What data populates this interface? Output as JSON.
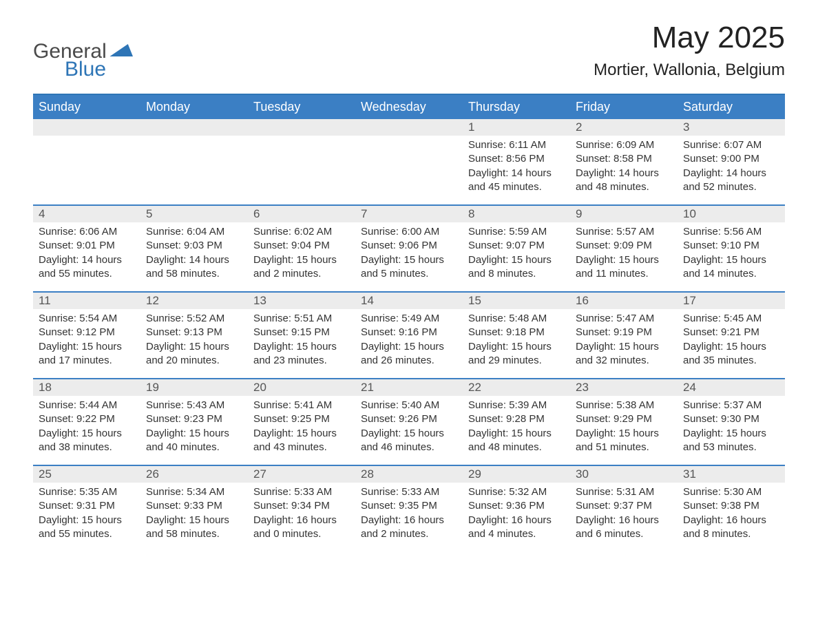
{
  "logo": {
    "word1": "General",
    "word2": "Blue"
  },
  "title": "May 2025",
  "location": "Mortier, Wallonia, Belgium",
  "colors": {
    "header_bg": "#3b7fc4",
    "header_border": "#2e75b6",
    "daynum_bg": "#ececec",
    "text": "#333333",
    "logo_gray": "#4a4a4a",
    "logo_blue": "#2e75b6",
    "page_bg": "#ffffff"
  },
  "typography": {
    "title_fontsize": 44,
    "location_fontsize": 24,
    "dow_fontsize": 18,
    "daynum_fontsize": 17,
    "body_fontsize": 15
  },
  "days_of_week": [
    "Sunday",
    "Monday",
    "Tuesday",
    "Wednesday",
    "Thursday",
    "Friday",
    "Saturday"
  ],
  "weeks": [
    [
      null,
      null,
      null,
      null,
      {
        "n": "1",
        "sunrise": "6:11 AM",
        "sunset": "8:56 PM",
        "dl_h": 14,
        "dl_m": 45
      },
      {
        "n": "2",
        "sunrise": "6:09 AM",
        "sunset": "8:58 PM",
        "dl_h": 14,
        "dl_m": 48
      },
      {
        "n": "3",
        "sunrise": "6:07 AM",
        "sunset": "9:00 PM",
        "dl_h": 14,
        "dl_m": 52
      }
    ],
    [
      {
        "n": "4",
        "sunrise": "6:06 AM",
        "sunset": "9:01 PM",
        "dl_h": 14,
        "dl_m": 55
      },
      {
        "n": "5",
        "sunrise": "6:04 AM",
        "sunset": "9:03 PM",
        "dl_h": 14,
        "dl_m": 58
      },
      {
        "n": "6",
        "sunrise": "6:02 AM",
        "sunset": "9:04 PM",
        "dl_h": 15,
        "dl_m": 2
      },
      {
        "n": "7",
        "sunrise": "6:00 AM",
        "sunset": "9:06 PM",
        "dl_h": 15,
        "dl_m": 5
      },
      {
        "n": "8",
        "sunrise": "5:59 AM",
        "sunset": "9:07 PM",
        "dl_h": 15,
        "dl_m": 8
      },
      {
        "n": "9",
        "sunrise": "5:57 AM",
        "sunset": "9:09 PM",
        "dl_h": 15,
        "dl_m": 11
      },
      {
        "n": "10",
        "sunrise": "5:56 AM",
        "sunset": "9:10 PM",
        "dl_h": 15,
        "dl_m": 14
      }
    ],
    [
      {
        "n": "11",
        "sunrise": "5:54 AM",
        "sunset": "9:12 PM",
        "dl_h": 15,
        "dl_m": 17
      },
      {
        "n": "12",
        "sunrise": "5:52 AM",
        "sunset": "9:13 PM",
        "dl_h": 15,
        "dl_m": 20
      },
      {
        "n": "13",
        "sunrise": "5:51 AM",
        "sunset": "9:15 PM",
        "dl_h": 15,
        "dl_m": 23
      },
      {
        "n": "14",
        "sunrise": "5:49 AM",
        "sunset": "9:16 PM",
        "dl_h": 15,
        "dl_m": 26
      },
      {
        "n": "15",
        "sunrise": "5:48 AM",
        "sunset": "9:18 PM",
        "dl_h": 15,
        "dl_m": 29
      },
      {
        "n": "16",
        "sunrise": "5:47 AM",
        "sunset": "9:19 PM",
        "dl_h": 15,
        "dl_m": 32
      },
      {
        "n": "17",
        "sunrise": "5:45 AM",
        "sunset": "9:21 PM",
        "dl_h": 15,
        "dl_m": 35
      }
    ],
    [
      {
        "n": "18",
        "sunrise": "5:44 AM",
        "sunset": "9:22 PM",
        "dl_h": 15,
        "dl_m": 38
      },
      {
        "n": "19",
        "sunrise": "5:43 AM",
        "sunset": "9:23 PM",
        "dl_h": 15,
        "dl_m": 40
      },
      {
        "n": "20",
        "sunrise": "5:41 AM",
        "sunset": "9:25 PM",
        "dl_h": 15,
        "dl_m": 43
      },
      {
        "n": "21",
        "sunrise": "5:40 AM",
        "sunset": "9:26 PM",
        "dl_h": 15,
        "dl_m": 46
      },
      {
        "n": "22",
        "sunrise": "5:39 AM",
        "sunset": "9:28 PM",
        "dl_h": 15,
        "dl_m": 48
      },
      {
        "n": "23",
        "sunrise": "5:38 AM",
        "sunset": "9:29 PM",
        "dl_h": 15,
        "dl_m": 51
      },
      {
        "n": "24",
        "sunrise": "5:37 AM",
        "sunset": "9:30 PM",
        "dl_h": 15,
        "dl_m": 53
      }
    ],
    [
      {
        "n": "25",
        "sunrise": "5:35 AM",
        "sunset": "9:31 PM",
        "dl_h": 15,
        "dl_m": 55
      },
      {
        "n": "26",
        "sunrise": "5:34 AM",
        "sunset": "9:33 PM",
        "dl_h": 15,
        "dl_m": 58
      },
      {
        "n": "27",
        "sunrise": "5:33 AM",
        "sunset": "9:34 PM",
        "dl_h": 16,
        "dl_m": 0
      },
      {
        "n": "28",
        "sunrise": "5:33 AM",
        "sunset": "9:35 PM",
        "dl_h": 16,
        "dl_m": 2
      },
      {
        "n": "29",
        "sunrise": "5:32 AM",
        "sunset": "9:36 PM",
        "dl_h": 16,
        "dl_m": 4
      },
      {
        "n": "30",
        "sunrise": "5:31 AM",
        "sunset": "9:37 PM",
        "dl_h": 16,
        "dl_m": 6
      },
      {
        "n": "31",
        "sunrise": "5:30 AM",
        "sunset": "9:38 PM",
        "dl_h": 16,
        "dl_m": 8
      }
    ]
  ]
}
